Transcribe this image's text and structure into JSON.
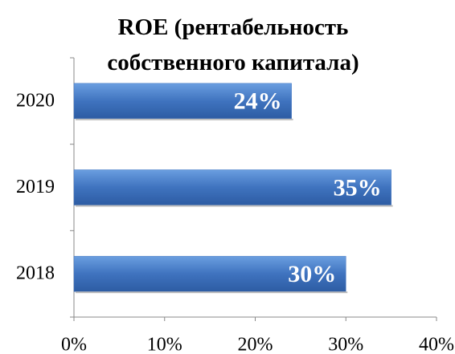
{
  "chart_data": {
    "type": "hbar",
    "title": "ROE (рентабельность\nсобственного капитала)",
    "categories": [
      "2018",
      "2019",
      "2020"
    ],
    "values": [
      30,
      35,
      24
    ],
    "value_labels": [
      "30%",
      "35%",
      "24%"
    ],
    "color": "#3f73bf",
    "xlim": [
      0,
      40
    ],
    "xticks": [
      {
        "value": 0,
        "label": "0%"
      },
      {
        "value": 10,
        "label": "10%"
      },
      {
        "value": 20,
        "label": "20%"
      },
      {
        "value": 30,
        "label": "30%"
      },
      {
        "value": 40,
        "label": "40%"
      }
    ],
    "grid": false
  }
}
